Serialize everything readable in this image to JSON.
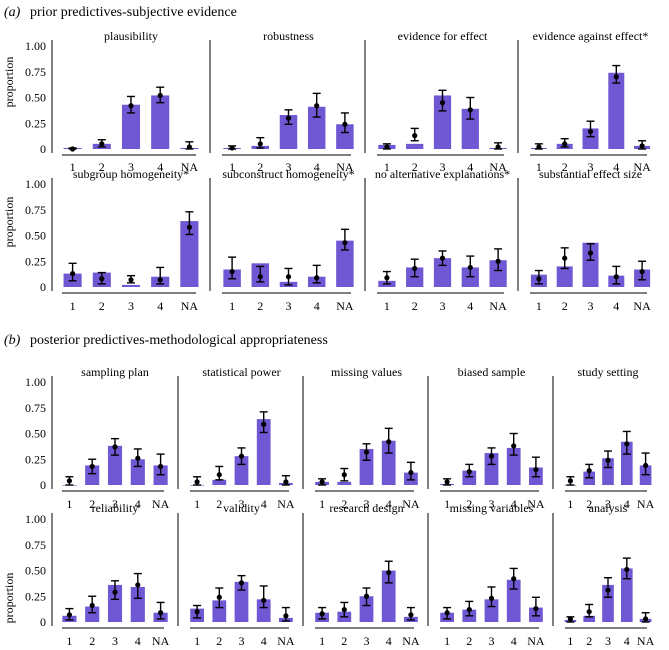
{
  "colors": {
    "bar": "#7057d4",
    "axis": "#000000"
  },
  "chart_data": [
    {
      "type": "bar",
      "panel_label": "(a)",
      "title": "prior predictives-subjective evidence",
      "ylabel": "proportion",
      "ylim": [
        0,
        1
      ],
      "yticks": [
        "0",
        "0.25",
        "0.50",
        "0.75",
        "1.00"
      ],
      "categories": [
        "1",
        "2",
        "3",
        "4",
        "NA"
      ],
      "subplots": [
        {
          "title": "plausibility",
          "bars": [
            0.01,
            0.05,
            0.43,
            0.52,
            0.01
          ],
          "points": [
            0.0,
            0.05,
            0.42,
            0.52,
            0.02
          ],
          "errors": [
            [
              0.0,
              0.01
            ],
            [
              0.02,
              0.09
            ],
            [
              0.35,
              0.51
            ],
            [
              0.45,
              0.6
            ],
            [
              0.0,
              0.07
            ]
          ]
        },
        {
          "title": "robustness",
          "bars": [
            0.01,
            0.03,
            0.33,
            0.41,
            0.24
          ],
          "points": [
            0.01,
            0.05,
            0.3,
            0.42,
            0.24
          ],
          "errors": [
            [
              0.0,
              0.03
            ],
            [
              0.01,
              0.11
            ],
            [
              0.24,
              0.38
            ],
            [
              0.31,
              0.54
            ],
            [
              0.16,
              0.35
            ]
          ]
        },
        {
          "title": "evidence for effect",
          "bars": [
            0.04,
            0.05,
            0.52,
            0.39,
            0.01
          ],
          "points": [
            0.02,
            0.13,
            0.45,
            0.38,
            0.02
          ],
          "errors": [
            [
              0.0,
              0.05
            ],
            [
              0.08,
              0.2
            ],
            [
              0.37,
              0.57
            ],
            [
              0.29,
              0.5
            ],
            [
              0.0,
              0.06
            ]
          ]
        },
        {
          "title": "evidence against effect*",
          "bars": [
            0.01,
            0.05,
            0.2,
            0.74,
            0.03
          ],
          "points": [
            0.02,
            0.05,
            0.17,
            0.7,
            0.03
          ],
          "errors": [
            [
              0.0,
              0.05
            ],
            [
              0.02,
              0.1
            ],
            [
              0.12,
              0.27
            ],
            [
              0.64,
              0.81
            ],
            [
              0.0,
              0.08
            ]
          ]
        },
        {
          "title": "subgroup homogeneity*",
          "bars": [
            0.13,
            0.14,
            0.02,
            0.1,
            0.64
          ],
          "points": [
            0.13,
            0.08,
            0.07,
            0.07,
            0.58
          ],
          "errors": [
            [
              0.06,
              0.23
            ],
            [
              0.03,
              0.14
            ],
            [
              0.04,
              0.11
            ],
            [
              0.03,
              0.19
            ],
            [
              0.51,
              0.73
            ]
          ]
        },
        {
          "title": "subconstruct homogeneity*",
          "bars": [
            0.17,
            0.23,
            0.05,
            0.1,
            0.45
          ],
          "points": [
            0.15,
            0.1,
            0.1,
            0.09,
            0.43
          ],
          "errors": [
            [
              0.08,
              0.29
            ],
            [
              0.05,
              0.2
            ],
            [
              0.02,
              0.18
            ],
            [
              0.04,
              0.21
            ],
            [
              0.36,
              0.56
            ]
          ]
        },
        {
          "title": "no alternative explanations*",
          "bars": [
            0.06,
            0.19,
            0.28,
            0.19,
            0.26
          ],
          "points": [
            0.09,
            0.18,
            0.28,
            0.19,
            0.25
          ],
          "errors": [
            [
              0.03,
              0.15
            ],
            [
              0.1,
              0.27
            ],
            [
              0.21,
              0.35
            ],
            [
              0.1,
              0.3
            ],
            [
              0.16,
              0.37
            ]
          ]
        },
        {
          "title": "substantial effect size",
          "bars": [
            0.12,
            0.2,
            0.43,
            0.11,
            0.17
          ],
          "points": [
            0.08,
            0.28,
            0.33,
            0.1,
            0.15
          ],
          "errors": [
            [
              0.03,
              0.16
            ],
            [
              0.18,
              0.38
            ],
            [
              0.26,
              0.42
            ],
            [
              0.03,
              0.2
            ],
            [
              0.07,
              0.25
            ]
          ]
        }
      ]
    },
    {
      "type": "bar",
      "panel_label": "(b)",
      "title": "posterior predictives-methodological appropriateness",
      "ylabel": "proportion",
      "ylim": [
        0,
        1
      ],
      "yticks": [
        "0",
        "0.25",
        "0.50",
        "0.75",
        "1.00"
      ],
      "categories": [
        "1",
        "2",
        "3",
        "4",
        "NA"
      ],
      "subplots": [
        {
          "title": "sampling plan",
          "bars": [
            0.0,
            0.19,
            0.38,
            0.25,
            0.19
          ],
          "points": [
            0.04,
            0.18,
            0.37,
            0.26,
            0.18
          ],
          "errors": [
            [
              0.0,
              0.08
            ],
            [
              0.11,
              0.25
            ],
            [
              0.29,
              0.45
            ],
            [
              0.18,
              0.35
            ],
            [
              0.1,
              0.3
            ]
          ]
        },
        {
          "title": "statistical power",
          "bars": [
            0.0,
            0.05,
            0.28,
            0.64,
            0.02
          ],
          "points": [
            0.03,
            0.1,
            0.28,
            0.59,
            0.03
          ],
          "errors": [
            [
              0.0,
              0.08
            ],
            [
              0.05,
              0.18
            ],
            [
              0.2,
              0.36
            ],
            [
              0.51,
              0.71
            ],
            [
              0.0,
              0.09
            ]
          ]
        },
        {
          "title": "missing values",
          "bars": [
            0.03,
            0.03,
            0.35,
            0.43,
            0.12
          ],
          "points": [
            0.03,
            0.1,
            0.32,
            0.42,
            0.12
          ],
          "errors": [
            [
              0.0,
              0.06
            ],
            [
              0.04,
              0.16
            ],
            [
              0.24,
              0.4
            ],
            [
              0.31,
              0.55
            ],
            [
              0.05,
              0.22
            ]
          ]
        },
        {
          "title": "biased sample",
          "bars": [
            0.01,
            0.14,
            0.31,
            0.36,
            0.17
          ],
          "points": [
            0.03,
            0.13,
            0.28,
            0.38,
            0.15
          ],
          "errors": [
            [
              0.0,
              0.06
            ],
            [
              0.08,
              0.2
            ],
            [
              0.2,
              0.36
            ],
            [
              0.29,
              0.5
            ],
            [
              0.08,
              0.27
            ]
          ]
        },
        {
          "title": "study setting",
          "bars": [
            0.0,
            0.13,
            0.26,
            0.42,
            0.19
          ],
          "points": [
            0.04,
            0.14,
            0.24,
            0.4,
            0.19
          ],
          "errors": [
            [
              0.0,
              0.08
            ],
            [
              0.07,
              0.2
            ],
            [
              0.17,
              0.33
            ],
            [
              0.3,
              0.52
            ],
            [
              0.1,
              0.31
            ]
          ]
        }
      ]
    },
    {
      "type": "bar",
      "ylabel": "proportion",
      "ylim": [
        0,
        1
      ],
      "yticks": [
        "0",
        "0.25",
        "0.50",
        "0.75",
        "1.00"
      ],
      "categories": [
        "1",
        "2",
        "3",
        "4",
        "NA"
      ],
      "subplots": [
        {
          "title": "reliability",
          "bars": [
            0.06,
            0.15,
            0.36,
            0.34,
            0.09
          ],
          "points": [
            0.07,
            0.16,
            0.29,
            0.36,
            0.09
          ],
          "errors": [
            [
              0.02,
              0.13
            ],
            [
              0.09,
              0.25
            ],
            [
              0.22,
              0.4
            ],
            [
              0.23,
              0.47
            ],
            [
              0.03,
              0.19
            ]
          ]
        },
        {
          "title": "validity",
          "bars": [
            0.13,
            0.21,
            0.39,
            0.22,
            0.04
          ],
          "points": [
            0.1,
            0.24,
            0.38,
            0.21,
            0.06
          ],
          "errors": [
            [
              0.04,
              0.16
            ],
            [
              0.14,
              0.33
            ],
            [
              0.31,
              0.45
            ],
            [
              0.14,
              0.35
            ],
            [
              0.01,
              0.14
            ]
          ]
        },
        {
          "title": "research design",
          "bars": [
            0.09,
            0.1,
            0.25,
            0.5,
            0.05
          ],
          "points": [
            0.08,
            0.12,
            0.25,
            0.48,
            0.07
          ],
          "errors": [
            [
              0.03,
              0.14
            ],
            [
              0.05,
              0.19
            ],
            [
              0.16,
              0.33
            ],
            [
              0.38,
              0.59
            ],
            [
              0.02,
              0.14
            ]
          ]
        },
        {
          "title": "missing variables",
          "bars": [
            0.09,
            0.12,
            0.22,
            0.41,
            0.14
          ],
          "points": [
            0.09,
            0.12,
            0.23,
            0.42,
            0.13
          ],
          "errors": [
            [
              0.03,
              0.14
            ],
            [
              0.06,
              0.2
            ],
            [
              0.15,
              0.34
            ],
            [
              0.32,
              0.52
            ],
            [
              0.06,
              0.24
            ]
          ]
        },
        {
          "title": "analysis",
          "bars": [
            0.02,
            0.06,
            0.36,
            0.52,
            0.03
          ],
          "points": [
            0.03,
            0.1,
            0.31,
            0.51,
            0.03
          ],
          "errors": [
            [
              0.0,
              0.05
            ],
            [
              0.05,
              0.17
            ],
            [
              0.24,
              0.43
            ],
            [
              0.42,
              0.62
            ],
            [
              0.0,
              0.09
            ]
          ]
        }
      ]
    }
  ]
}
